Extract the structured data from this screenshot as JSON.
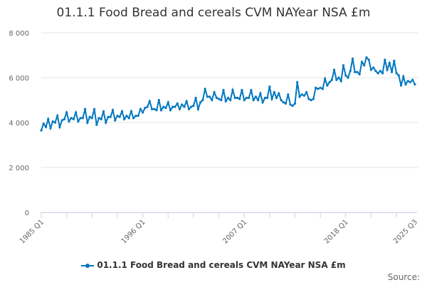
{
  "chart_data": {
    "type": "line",
    "title": "01.1.1 Food Bread and cereals CVM NAYear NSA £m",
    "xlabel": "",
    "ylabel": "",
    "ylim": [
      0,
      8000
    ],
    "y_ticks": [
      "0",
      "2 000",
      "4 000",
      "6 000",
      "8 000"
    ],
    "y_tick_values": [
      0,
      2000,
      4000,
      6000,
      8000
    ],
    "start_year": 1985,
    "start_quarter": 1,
    "x_ticks": [
      "1985 Q1",
      "1996 Q1",
      "2007 Q1",
      "2018 Q1",
      "2025 Q3"
    ],
    "x_tick_index": [
      0,
      44,
      88,
      132,
      162
    ],
    "grid": true,
    "legend_position": "bottom",
    "series": [
      {
        "name": "01.1.1 Food Bread and cereals CVM NAYear NSA £m",
        "color": "#0077c0",
        "values": [
          3650,
          3950,
          3800,
          4150,
          3750,
          4050,
          4000,
          4300,
          3800,
          4100,
          4150,
          4450,
          4050,
          4200,
          4150,
          4450,
          4050,
          4200,
          4200,
          4600,
          4000,
          4250,
          4200,
          4600,
          3900,
          4200,
          4150,
          4500,
          4000,
          4250,
          4250,
          4550,
          4100,
          4300,
          4250,
          4500,
          4150,
          4300,
          4200,
          4500,
          4200,
          4300,
          4300,
          4600,
          4450,
          4650,
          4700,
          4950,
          4600,
          4600,
          4550,
          5000,
          4550,
          4700,
          4650,
          4900,
          4550,
          4700,
          4700,
          4850,
          4600,
          4800,
          4700,
          4950,
          4600,
          4700,
          4750,
          5100,
          4600,
          4900,
          5000,
          5500,
          5150,
          5150,
          5000,
          5350,
          5100,
          5050,
          5000,
          5450,
          4950,
          5100,
          5000,
          5450,
          5100,
          5100,
          5050,
          5450,
          5000,
          5100,
          5100,
          5450,
          5000,
          5150,
          5000,
          5300,
          4900,
          5100,
          5100,
          5600,
          5050,
          5350,
          5100,
          5300,
          5000,
          4900,
          4850,
          5250,
          4800,
          4750,
          4850,
          5800,
          5150,
          5250,
          5200,
          5350,
          5050,
          5000,
          5050,
          5550,
          5500,
          5550,
          5500,
          5950,
          5650,
          5800,
          5900,
          6350,
          5900,
          6000,
          5850,
          6550,
          6100,
          6000,
          6300,
          6850,
          6250,
          6250,
          6150,
          6700,
          6550,
          6900,
          6800,
          6350,
          6450,
          6300,
          6200,
          6300,
          6200,
          6800,
          6350,
          6650,
          6250,
          6750,
          6200,
          6100,
          5650,
          6050,
          5700,
          5850,
          5800,
          5900,
          5700
        ]
      }
    ]
  },
  "source_label": "Source:"
}
